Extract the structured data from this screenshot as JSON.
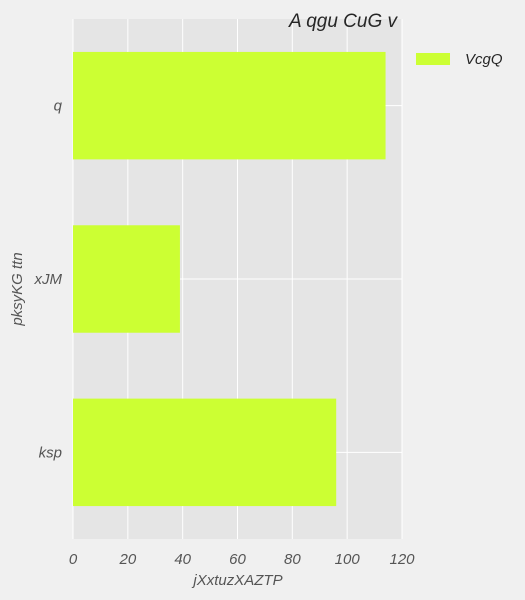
{
  "chart_data": {
    "type": "bar",
    "orientation": "horizontal",
    "title": "A qgu CuG v",
    "xlabel": "jXxtuzXAZTP",
    "ylabel": "pksyKG ttn",
    "categories": [
      "q",
      "xJM",
      "ksp"
    ],
    "series": [
      {
        "name": "VcgQ",
        "values": [
          114,
          39,
          96
        ],
        "color": "#ccff33"
      }
    ],
    "xlim": [
      0,
      120
    ],
    "xticks": [
      0,
      20,
      40,
      60,
      80,
      100,
      120
    ],
    "grid": true,
    "legend": "outside-top-right",
    "background": "#f0f0f0",
    "plot_background": "#e5e5e5",
    "grid_color": "#ffffff"
  }
}
